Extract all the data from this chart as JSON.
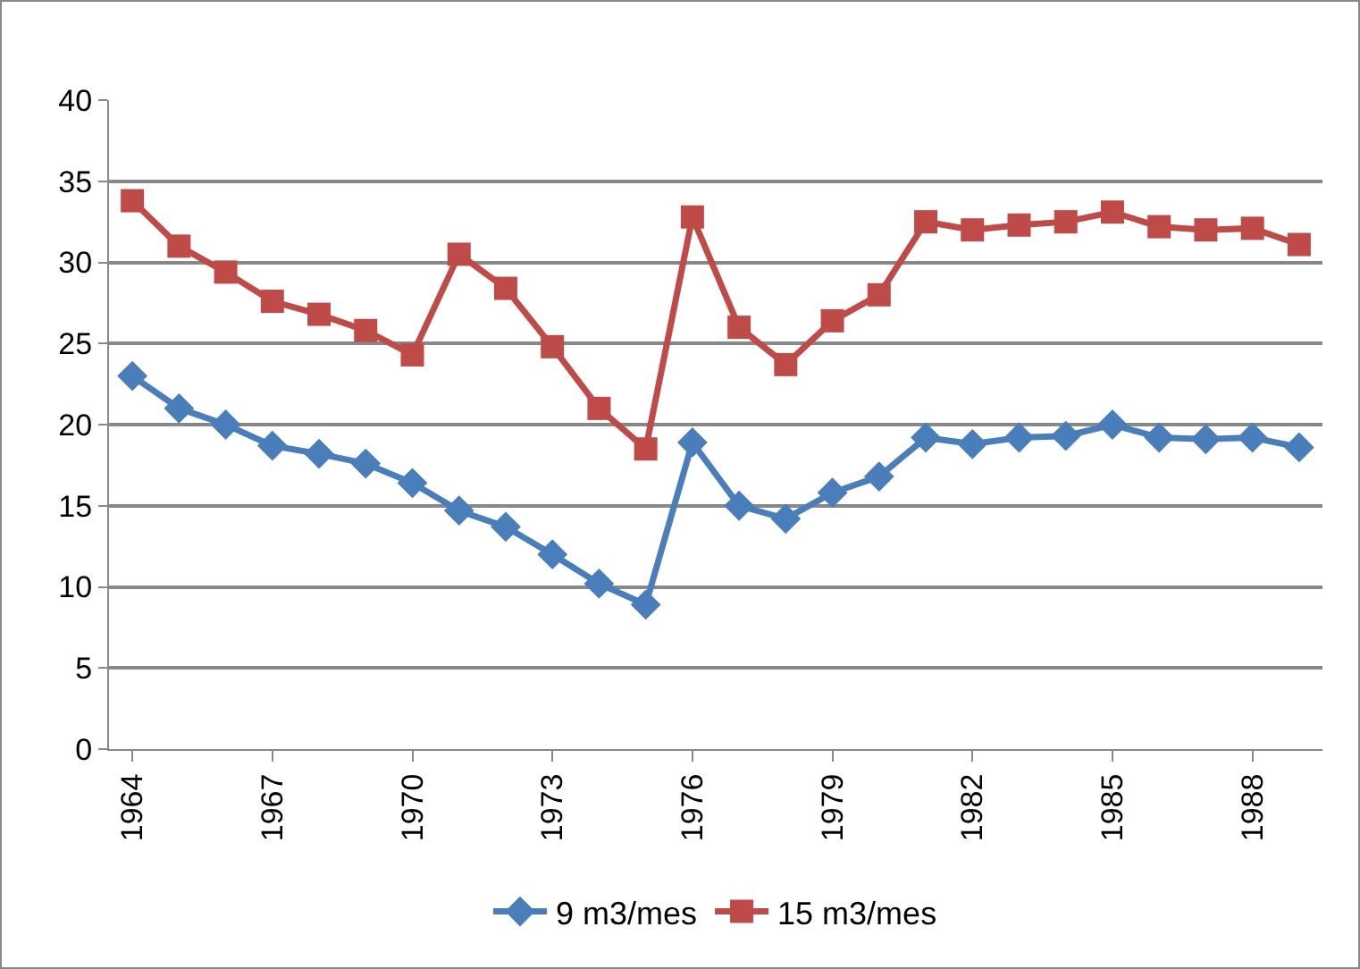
{
  "chart_data": {
    "type": "line",
    "categories": [
      "1964",
      null,
      null,
      "1967",
      null,
      null,
      "1970",
      null,
      null,
      "1973",
      null,
      null,
      "1976",
      null,
      null,
      "1979",
      null,
      null,
      "1982",
      null,
      null,
      "1985",
      null,
      null,
      "1988",
      null
    ],
    "series": [
      {
        "name": "9 m3/mes",
        "color": "#4a7ebb",
        "marker": "diamond",
        "values": [
          23,
          21,
          20,
          18.7,
          18.2,
          17.6,
          16.4,
          14.7,
          13.7,
          12,
          10.2,
          8.9,
          18.9,
          15,
          14.2,
          15.8,
          16.8,
          19.2,
          18.8,
          19.2,
          19.3,
          20,
          19.2,
          19.1,
          19.2,
          18.6
        ]
      },
      {
        "name": "15 m3/mes",
        "color": "#be4b48",
        "marker": "square",
        "values": [
          33.8,
          31,
          29.4,
          27.6,
          26.8,
          25.8,
          24.3,
          30.5,
          28.4,
          24.8,
          21,
          18.5,
          32.8,
          26,
          23.7,
          26.4,
          28,
          32.5,
          32,
          32.3,
          32.5,
          33.1,
          32.2,
          32,
          32.1,
          31.1
        ]
      }
    ],
    "ylim": [
      0,
      40
    ],
    "yticks": [
      0,
      5,
      10,
      15,
      20,
      25,
      30,
      35,
      40
    ],
    "grid": "y",
    "legend": "bottom",
    "line_style": "solid"
  }
}
